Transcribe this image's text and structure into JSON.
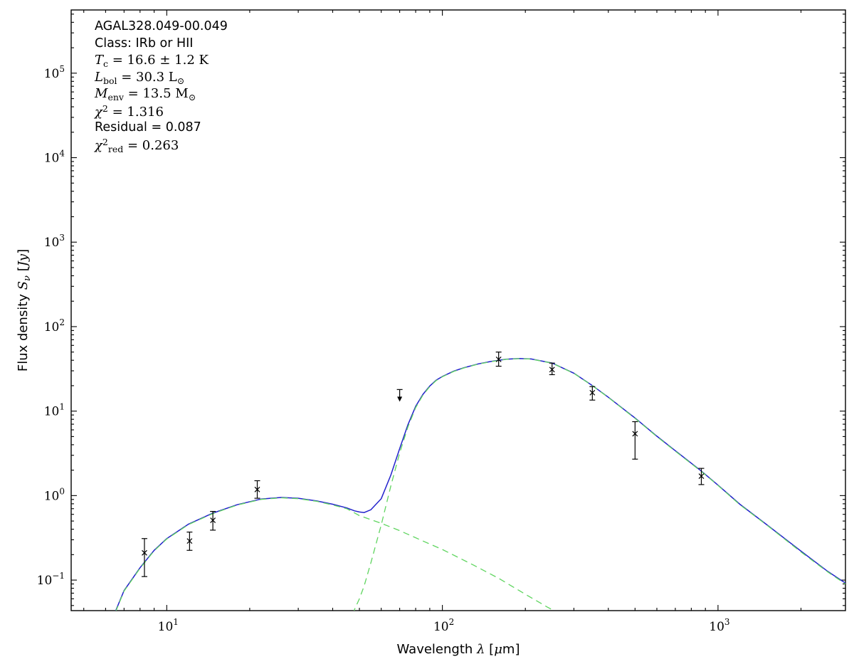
{
  "figure": {
    "background": "#ffffff",
    "frame_color": "#000000"
  },
  "annotations": {
    "lines": [
      {
        "font": "sans",
        "segments": [
          {
            "t": "AGAL328.049-00.049"
          }
        ]
      },
      {
        "font": "sans",
        "segments": [
          {
            "t": "Class: IRb or HII"
          }
        ]
      },
      {
        "font": "serif",
        "segments": [
          {
            "t": "T",
            "i": true
          },
          {
            "t": "c",
            "sub": true
          },
          {
            "t": " = 16.6 ± 1.2 K"
          }
        ]
      },
      {
        "font": "serif",
        "segments": [
          {
            "t": "L",
            "i": true
          },
          {
            "t": "bol",
            "sub": true
          },
          {
            "t": " = 30.3 L"
          },
          {
            "t": "⊙",
            "sub": true
          }
        ]
      },
      {
        "font": "serif",
        "segments": [
          {
            "t": "M",
            "i": true
          },
          {
            "t": "env",
            "sub": true
          },
          {
            "t": " = 13.5 M"
          },
          {
            "t": "⊙",
            "sub": true
          }
        ]
      },
      {
        "font": "serif",
        "segments": [
          {
            "t": "χ",
            "i": true
          },
          {
            "t": "2",
            "sup": true
          },
          {
            "t": " = 1.316"
          }
        ]
      },
      {
        "font": "sans",
        "segments": [
          {
            "t": "Residual = 0.087"
          }
        ]
      },
      {
        "font": "serif",
        "segments": [
          {
            "t": "χ",
            "i": true
          },
          {
            "t": "2",
            "sup": true
          },
          {
            "t": "red",
            "sub": true
          },
          {
            "t": " = 0.263"
          }
        ]
      }
    ]
  },
  "chart_data": {
    "type": "line",
    "title": "",
    "xscale": "log",
    "yscale": "log",
    "xlim": [
      4.5,
      2900
    ],
    "ylim": [
      0.0435,
      560000
    ],
    "grid": false,
    "xlabel_segments": [
      {
        "t": "Wavelength "
      },
      {
        "t": "λ",
        "i": true
      },
      {
        "t": " ["
      },
      {
        "t": "μ",
        "i": true
      },
      {
        "t": "m]"
      }
    ],
    "ylabel_segments": [
      {
        "t": "Flux density "
      },
      {
        "t": "S",
        "i": true
      },
      {
        "t": "ν",
        "i": true,
        "sub": true
      },
      {
        "t": " ["
      },
      {
        "t": "Jy",
        "i": true
      },
      {
        "t": "]"
      }
    ],
    "x_major_ticks": [
      10,
      100,
      1000
    ],
    "y_major_ticks": [
      0.1,
      1,
      10,
      100,
      1000,
      10000,
      100000
    ],
    "series": [
      {
        "name": "total-model",
        "color": "#2222cc",
        "dash": null,
        "width": 1.5,
        "points": [
          [
            6.3,
            0.033
          ],
          [
            6.5,
            0.042
          ],
          [
            7,
            0.075
          ],
          [
            8,
            0.14
          ],
          [
            9,
            0.225
          ],
          [
            10,
            0.31
          ],
          [
            12,
            0.46
          ],
          [
            14.7,
            0.62
          ],
          [
            18,
            0.78
          ],
          [
            22,
            0.91
          ],
          [
            26,
            0.95
          ],
          [
            30,
            0.93
          ],
          [
            35,
            0.865
          ],
          [
            40,
            0.79
          ],
          [
            45,
            0.715
          ],
          [
            48,
            0.66
          ],
          [
            50,
            0.64
          ],
          [
            52,
            0.63
          ],
          [
            55,
            0.68
          ],
          [
            60,
            0.92
          ],
          [
            65,
            1.75
          ],
          [
            70,
            3.6
          ],
          [
            75,
            6.9
          ],
          [
            80,
            11.4
          ],
          [
            85,
            15.8
          ],
          [
            90,
            19.8
          ],
          [
            95,
            23.3
          ],
          [
            100,
            25.7
          ],
          [
            110,
            29.7
          ],
          [
            120,
            32.7
          ],
          [
            135,
            36.2
          ],
          [
            150,
            38.7
          ],
          [
            170,
            41.1
          ],
          [
            190,
            41.9
          ],
          [
            210,
            41.4
          ],
          [
            250,
            37.1
          ],
          [
            300,
            28.1
          ],
          [
            350,
            20.1
          ],
          [
            400,
            14.6
          ],
          [
            500,
            8.3
          ],
          [
            600,
            5.05
          ],
          [
            700,
            3.4
          ],
          [
            870,
            1.95
          ],
          [
            1000,
            1.33
          ],
          [
            1200,
            0.79
          ],
          [
            1500,
            0.455
          ],
          [
            2000,
            0.22
          ],
          [
            2500,
            0.127
          ],
          [
            2900,
            0.092
          ]
        ]
      },
      {
        "name": "warm-component",
        "color": "#60d560",
        "dash": "9 6",
        "width": 1.3,
        "points": [
          [
            6.3,
            0.032
          ],
          [
            6.5,
            0.041
          ],
          [
            7,
            0.074
          ],
          [
            8,
            0.138
          ],
          [
            9,
            0.222
          ],
          [
            10,
            0.306
          ],
          [
            12,
            0.455
          ],
          [
            14.7,
            0.613
          ],
          [
            18,
            0.772
          ],
          [
            22,
            0.902
          ],
          [
            26,
            0.942
          ],
          [
            30,
            0.92
          ],
          [
            35,
            0.855
          ],
          [
            40,
            0.775
          ],
          [
            45,
            0.7
          ],
          [
            50,
            0.58
          ],
          [
            55,
            0.52
          ],
          [
            60,
            0.47
          ],
          [
            70,
            0.385
          ],
          [
            85,
            0.29
          ],
          [
            100,
            0.23
          ],
          [
            130,
            0.15
          ],
          [
            160,
            0.105
          ],
          [
            200,
            0.068
          ],
          [
            240,
            0.048
          ],
          [
            270,
            0.039
          ]
        ]
      },
      {
        "name": "cold-component",
        "color": "#60d560",
        "dash": "9 6",
        "width": 1.3,
        "points": [
          [
            46,
            0.03
          ],
          [
            48,
            0.045
          ],
          [
            50,
            0.06
          ],
          [
            52,
            0.085
          ],
          [
            55,
            0.16
          ],
          [
            60,
            0.45
          ],
          [
            65,
            1.3
          ],
          [
            70,
            3.2
          ],
          [
            75,
            6.5
          ],
          [
            80,
            11
          ],
          [
            85,
            15.5
          ],
          [
            90,
            19.5
          ],
          [
            95,
            23
          ],
          [
            100,
            25.5
          ],
          [
            110,
            29.5
          ],
          [
            120,
            32.5
          ],
          [
            135,
            36
          ],
          [
            150,
            38.5
          ],
          [
            170,
            41
          ],
          [
            190,
            41.8
          ],
          [
            210,
            41.3
          ],
          [
            250,
            37
          ],
          [
            300,
            28
          ],
          [
            350,
            20
          ],
          [
            400,
            14.5
          ],
          [
            500,
            8.2
          ],
          [
            600,
            5.0
          ],
          [
            700,
            3.35
          ],
          [
            870,
            1.93
          ],
          [
            1000,
            1.32
          ],
          [
            1200,
            0.78
          ],
          [
            1500,
            0.45
          ],
          [
            2000,
            0.215
          ],
          [
            2500,
            0.125
          ],
          [
            2900,
            0.09
          ]
        ]
      }
    ],
    "data_points": {
      "marker": "x",
      "color": "#000000",
      "points": [
        {
          "x": 8.3,
          "y": 0.21,
          "ylo": 0.11,
          "yhi": 0.31
        },
        {
          "x": 12.1,
          "y": 0.29,
          "ylo": 0.225,
          "yhi": 0.37
        },
        {
          "x": 14.7,
          "y": 0.51,
          "ylo": 0.39,
          "yhi": 0.65
        },
        {
          "x": 21.3,
          "y": 1.18,
          "ylo": 0.93,
          "yhi": 1.5
        },
        {
          "x": 160,
          "y": 41,
          "ylo": 34,
          "yhi": 50
        },
        {
          "x": 250,
          "y": 31,
          "ylo": 27,
          "yhi": 37
        },
        {
          "x": 350,
          "y": 16.5,
          "ylo": 13.5,
          "yhi": 19.5
        },
        {
          "x": 500,
          "y": 5.4,
          "ylo": 2.7,
          "yhi": 7.5
        },
        {
          "x": 870,
          "y": 1.7,
          "ylo": 1.35,
          "yhi": 2.1
        }
      ]
    },
    "upper_limits": [
      {
        "x": 70,
        "y": 18
      }
    ]
  }
}
